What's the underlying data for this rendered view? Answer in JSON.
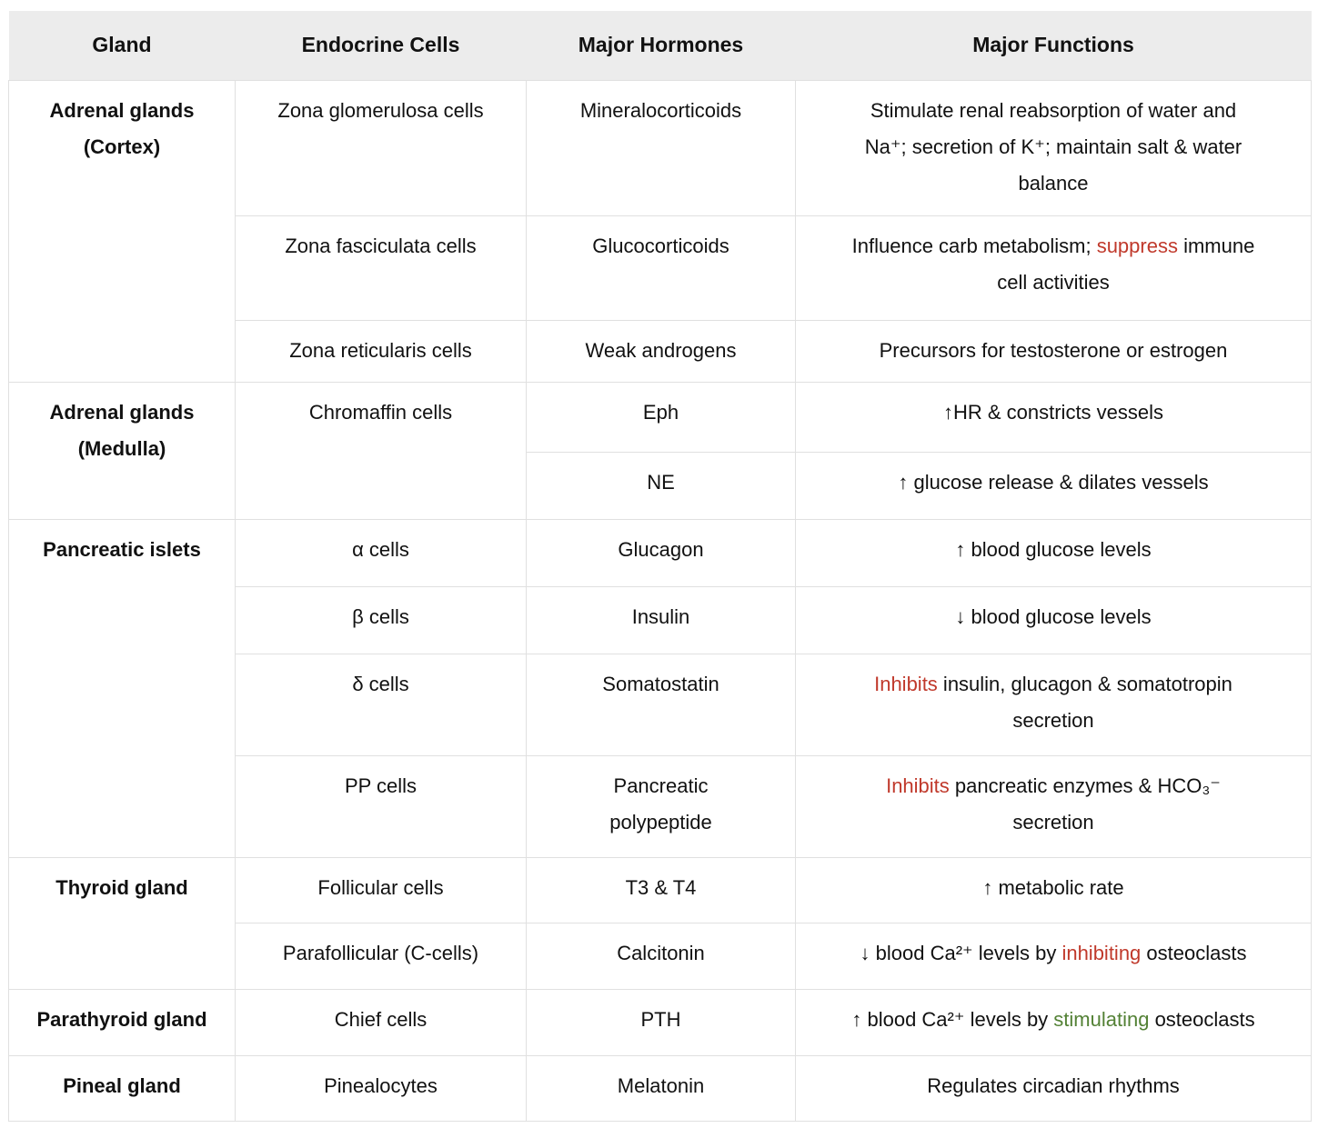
{
  "palette": {
    "header_bg": "#ececec",
    "border": "#e0e0e0",
    "text": "#111111",
    "red": "#c0392b",
    "green": "#538135",
    "page_bg": "#ffffff"
  },
  "header": {
    "cells": [
      {
        "label": "Gland"
      },
      {
        "label": "Endocrine Cells"
      },
      {
        "label": "Major Hormones"
      },
      {
        "label": "Major Functions"
      }
    ]
  },
  "glands": [
    {
      "label": "Adrenal glands\n(Cortex)",
      "rowspan": 3
    },
    {
      "label": "Adrenal glands\n(Medulla)",
      "rowspan": 2
    },
    {
      "label": "Pancreatic islets",
      "rowspan": 4
    },
    {
      "label": "Thyroid gland",
      "rowspan": 2
    },
    {
      "label": "Parathyroid gland",
      "rowspan": 1
    },
    {
      "label": "Pineal gland",
      "rowspan": 1
    }
  ],
  "rows": [
    {
      "cells": "Zona glomerulosa cells",
      "hormone": "Mineralocorticoids",
      "function": [
        {
          "text": "Stimulate renal reabsorption of water and\nNa⁺; secretion of K⁺; maintain salt & water\nbalance"
        }
      ]
    },
    {
      "cells": "Zona fasciculata cells",
      "hormone": "Glucocorticoids",
      "function": [
        {
          "text": "Influence carb metabolism; "
        },
        {
          "text": "suppress",
          "color": "red"
        },
        {
          "text": " immune\ncell activities"
        }
      ]
    },
    {
      "cells": "Zona reticularis cells",
      "hormone": "Weak androgens",
      "function": [
        {
          "text": "Precursors for testosterone or estrogen"
        }
      ]
    },
    {
      "cells": "Chromaffin cells",
      "hormone": "Eph",
      "function": [
        {
          "text": "↑HR & constricts vessels"
        }
      ]
    },
    {
      "hormone": "NE",
      "function": [
        {
          "text": "↑ glucose release & dilates vessels"
        }
      ]
    },
    {
      "cells": "α cells",
      "hormone": "Glucagon",
      "function": [
        {
          "text": "↑ blood glucose levels"
        }
      ]
    },
    {
      "cells": "β cells",
      "hormone": "Insulin",
      "function": [
        {
          "text": "↓ blood glucose levels"
        }
      ]
    },
    {
      "cells": "δ cells",
      "hormone": "Somatostatin",
      "function": [
        {
          "text": "Inhibits",
          "color": "red"
        },
        {
          "text": " insulin, glucagon & somatotropin\nsecretion"
        }
      ]
    },
    {
      "cells": "PP cells",
      "hormone": "Pancreatic\npolypeptide",
      "function": [
        {
          "text": "Inhibits",
          "color": "red"
        },
        {
          "text": " pancreatic enzymes & HCO₃⁻\nsecretion"
        }
      ]
    },
    {
      "cells": "Follicular cells",
      "hormone": "T3 & T4",
      "function": [
        {
          "text": "↑ metabolic rate"
        }
      ]
    },
    {
      "cells": "Parafollicular (C-cells)",
      "hormone": "Calcitonin",
      "function": [
        {
          "text": "↓ blood Ca²⁺ levels by "
        },
        {
          "text": "inhibiting",
          "color": "red"
        },
        {
          "text": " osteoclasts"
        }
      ]
    },
    {
      "cells": "Chief cells",
      "hormone": "PTH",
      "function": [
        {
          "text": "↑ blood Ca²⁺ levels by "
        },
        {
          "text": "stimulating",
          "color": "green"
        },
        {
          "text": " osteoclasts"
        }
      ]
    },
    {
      "cells": "Pinealocytes",
      "hormone": "Melatonin",
      "function": [
        {
          "text": "Regulates circadian rhythms"
        }
      ]
    }
  ]
}
